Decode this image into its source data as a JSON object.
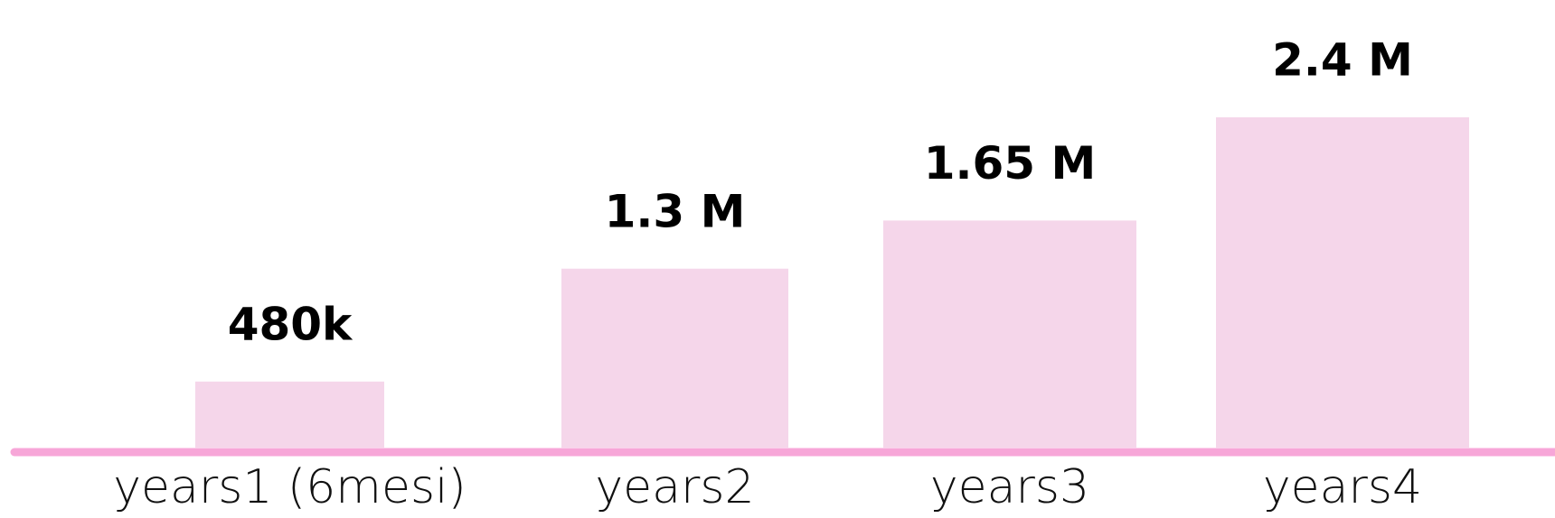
{
  "chart_data": {
    "type": "bar",
    "categories": [
      "years1 (6mesi)",
      "years2",
      "years3",
      "years4"
    ],
    "values": [
      480000,
      1300000,
      1650000,
      2400000
    ],
    "value_labels": [
      "480k",
      "1.3 M",
      "1.65 M",
      "2.4 M"
    ],
    "color": "#f5d6ea",
    "axis_color": "#f7a6d8",
    "ylim": [
      0,
      2400000
    ]
  }
}
